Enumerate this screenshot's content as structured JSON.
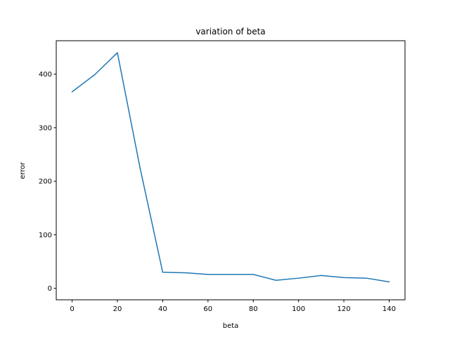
{
  "chart_data": {
    "type": "line",
    "title": "variation of beta",
    "xlabel": "beta",
    "ylabel": "error",
    "xlim": [
      -7,
      147
    ],
    "ylim": [
      -21.4,
      462.4
    ],
    "xticks": [
      0,
      20,
      40,
      60,
      80,
      100,
      120,
      140
    ],
    "yticks": [
      0,
      100,
      200,
      300,
      400
    ],
    "grid": false,
    "series": [
      {
        "color": "#1f77b4",
        "x": [
          0,
          10,
          20,
          30,
          40,
          50,
          60,
          70,
          80,
          90,
          100,
          110,
          120,
          130,
          140
        ],
        "y": [
          367,
          399,
          440,
          225,
          30,
          29,
          26,
          26,
          26,
          15,
          19,
          24,
          20,
          19,
          12
        ]
      }
    ]
  }
}
